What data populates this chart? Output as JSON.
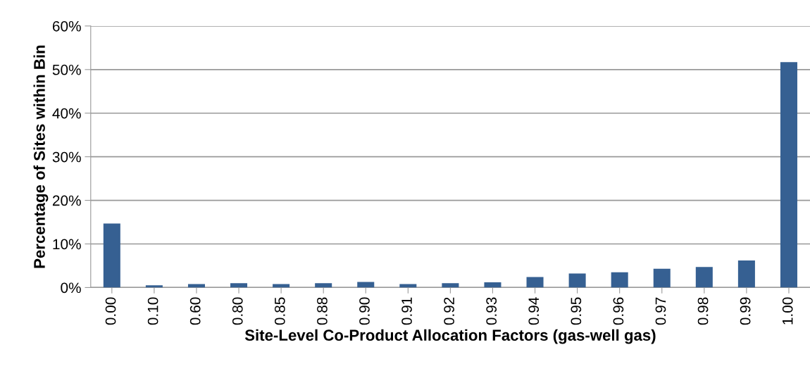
{
  "chart_data": {
    "type": "bar",
    "xlabel": "Site-Level Co-Product Allocation Factors (gas-well gas)",
    "ylabel": "Percentage of Sites within Bin",
    "categories": [
      "0.00",
      "0.10",
      "0.60",
      "0.80",
      "0.85",
      "0.88",
      "0.90",
      "0.91",
      "0.92",
      "0.93",
      "0.94",
      "0.95",
      "0.96",
      "0.97",
      "0.98",
      "0.99",
      "1.00"
    ],
    "values": [
      14.7,
      0.5,
      0.8,
      1.0,
      0.8,
      1.0,
      1.3,
      0.8,
      1.0,
      1.2,
      2.4,
      3.2,
      3.5,
      4.3,
      4.7,
      6.2,
      51.7
    ],
    "color": "#366092",
    "ylim": [
      0,
      60
    ],
    "yticks": [
      {
        "value": 0,
        "label": "0%"
      },
      {
        "value": 10,
        "label": "10%"
      },
      {
        "value": 20,
        "label": "20%"
      },
      {
        "value": 30,
        "label": "30%"
      },
      {
        "value": 40,
        "label": "40%"
      },
      {
        "value": 50,
        "label": "50%"
      },
      {
        "value": 60,
        "label": "60%"
      }
    ],
    "grid": "y",
    "legend": false
  }
}
